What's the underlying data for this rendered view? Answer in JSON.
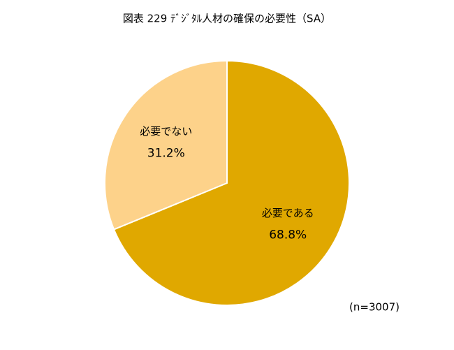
{
  "chart_data": {
    "type": "pie",
    "title": "図表 229 ﾃﾞｼﾞﾀﾙ人材の確保の必要性（SA）",
    "categories": [
      "必要である",
      "必要でない"
    ],
    "values": [
      68.8,
      31.2
    ],
    "value_labels": [
      "68.8%",
      "31.2%"
    ],
    "colors": [
      "#e0a800",
      "#fdd28a"
    ],
    "note": "(n=3007)"
  }
}
